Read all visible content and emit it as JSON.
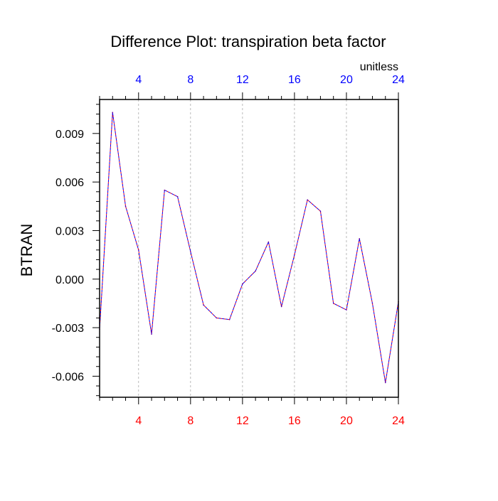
{
  "chart_data": {
    "type": "line",
    "title": "Difference Plot: transpiration beta factor",
    "units_label": "unitless",
    "ylabel": "BTRAN",
    "xlabel": "",
    "xlim": [
      1,
      24
    ],
    "ylim": [
      -0.0073,
      0.0111
    ],
    "x_ticks": [
      4,
      8,
      12,
      16,
      20,
      24
    ],
    "x_tick_labels": [
      "4",
      "8",
      "12",
      "16",
      "20",
      "24"
    ],
    "y_ticks": [
      -0.006,
      -0.003,
      0.0,
      0.003,
      0.006,
      0.009
    ],
    "y_tick_labels": [
      "-0.006",
      "-0.003",
      "0.000",
      "0.003",
      "0.006",
      "0.009"
    ],
    "grid": "vertical dashed at major x ticks",
    "bottom_axis_color": "#ff0000",
    "top_axis_color": "#0000ff",
    "line_color_a": "#ff0000",
    "line_color_b": "#0000ff",
    "series": [
      {
        "x": [
          1,
          2,
          3,
          4,
          5,
          6,
          7,
          8,
          9,
          10,
          11,
          12,
          13,
          14,
          15,
          16,
          17,
          18,
          19,
          20,
          21,
          22,
          23,
          24
        ],
        "values": [
          -0.0031,
          0.0103,
          0.0045,
          0.0018,
          -0.0034,
          0.0055,
          0.0051,
          0.0017,
          -0.0016,
          -0.0024,
          -0.0025,
          -0.0003,
          0.0005,
          0.0023,
          -0.0017,
          0.0015,
          0.0049,
          0.0042,
          -0.0015,
          -0.0019,
          0.0025,
          -0.0015,
          -0.0064,
          -0.0014
        ]
      }
    ]
  }
}
